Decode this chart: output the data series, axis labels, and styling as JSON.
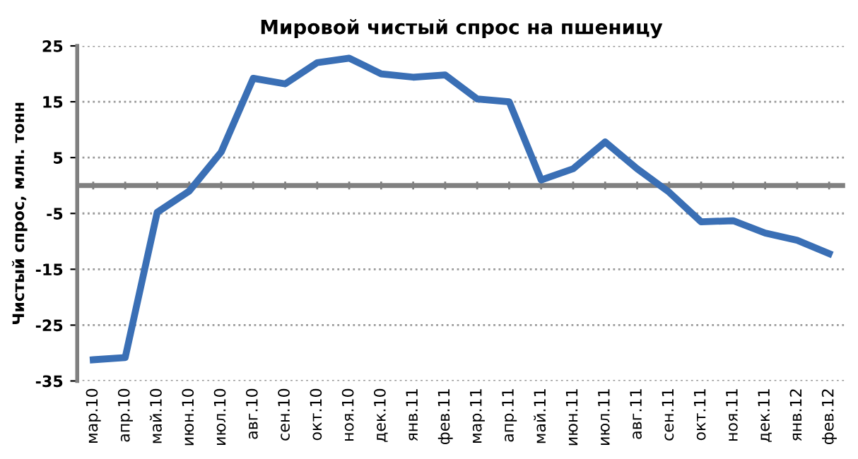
{
  "chart_data": {
    "type": "line",
    "title": "Мировой чистый спрос на пшеницу",
    "ylabel": "Чистый спрос, млн. тонн",
    "categories": [
      "мар.10",
      "апр.10",
      "май.10",
      "июн.10",
      "июл.10",
      "авг.10",
      "сен.10",
      "окт.10",
      "ноя.10",
      "дек.10",
      "янв.11",
      "фев.11",
      "мар.11",
      "апр.11",
      "май.11",
      "июн.11",
      "июл.11",
      "авг.11",
      "сен.11",
      "окт.11",
      "ноя.11",
      "дек.11",
      "янв.12",
      "фев.12"
    ],
    "series": [
      {
        "color": "#3a6fb5",
        "values": [
          -31.2,
          -30.8,
          -4.8,
          -1,
          6,
          19.2,
          18.2,
          22,
          22.8,
          20,
          19.4,
          19.8,
          15.5,
          15,
          1,
          3,
          7.8,
          3,
          -1.2,
          -6.5,
          -6.3,
          -8.5,
          -9.8,
          -12.2
        ]
      }
    ],
    "ylim": [
      -35,
      25
    ],
    "yticks": [
      -35,
      -25,
      -15,
      -5,
      5,
      15,
      25
    ],
    "grid": "y",
    "legend": false,
    "marker": "none",
    "line_style": "solid",
    "ref_lines": [
      {
        "axis": "y",
        "value": 0,
        "color": "#808080"
      }
    ]
  }
}
